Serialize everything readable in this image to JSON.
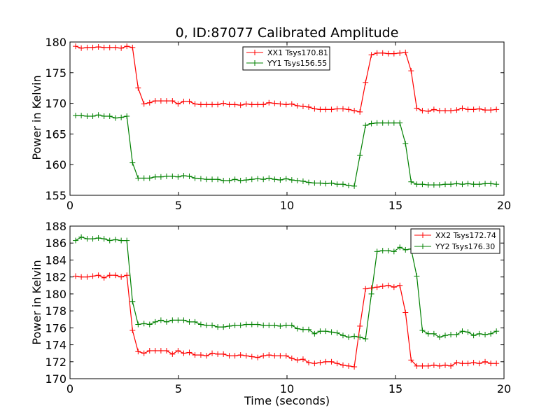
{
  "chart_data": [
    {
      "type": "line",
      "title": "0, ID:87077 Calibrated Amplitude",
      "xlabel": "",
      "ylabel": "Power in Kelvin",
      "xlim": [
        0,
        20
      ],
      "ylim": [
        155,
        180
      ],
      "xticks": [
        "0",
        "5",
        "10",
        "15",
        "20"
      ],
      "yticks": [
        "155",
        "160",
        "165",
        "170",
        "175",
        "180"
      ],
      "grid": false,
      "legend": "top-center",
      "series": [
        {
          "name": "XX1 Tsys170.81",
          "color": "#ff0000",
          "x": [
            0.26,
            0.52,
            0.79,
            1.05,
            1.31,
            1.57,
            1.83,
            2.1,
            2.36,
            2.62,
            2.88,
            3.14,
            3.41,
            3.67,
            3.93,
            4.19,
            4.45,
            4.72,
            4.98,
            5.24,
            5.5,
            5.76,
            6.03,
            6.29,
            6.55,
            6.81,
            7.07,
            7.34,
            7.6,
            7.86,
            8.12,
            8.38,
            8.65,
            8.91,
            9.17,
            9.43,
            9.69,
            9.96,
            10.22,
            10.48,
            10.74,
            11.0,
            11.27,
            11.53,
            11.79,
            12.05,
            12.31,
            12.58,
            12.84,
            13.1,
            13.36,
            13.62,
            13.89,
            14.15,
            14.41,
            14.67,
            14.93,
            15.2,
            15.46,
            15.72,
            15.98,
            16.24,
            16.51,
            16.77,
            17.03,
            17.29,
            17.55,
            17.82,
            18.08,
            18.34,
            18.6,
            18.86,
            19.13,
            19.39,
            19.65
          ],
          "y": [
            179.3,
            179.0,
            179.1,
            179.1,
            179.2,
            179.1,
            179.1,
            179.1,
            179.0,
            179.3,
            179.1,
            172.5,
            169.9,
            170.1,
            170.4,
            170.4,
            170.4,
            170.4,
            169.9,
            170.3,
            170.3,
            169.9,
            169.8,
            169.8,
            169.8,
            169.8,
            170.0,
            169.8,
            169.8,
            169.7,
            169.9,
            169.8,
            169.8,
            169.8,
            170.1,
            170.0,
            169.9,
            169.8,
            169.9,
            169.6,
            169.5,
            169.4,
            169.1,
            169.0,
            169.0,
            169.0,
            169.1,
            169.1,
            169.0,
            168.8,
            168.6,
            173.4,
            177.9,
            178.2,
            178.2,
            178.1,
            178.1,
            178.2,
            178.3,
            175.3,
            169.2,
            168.8,
            168.7,
            169.0,
            168.8,
            168.8,
            168.8,
            168.9,
            169.2,
            169.0,
            169.0,
            169.1,
            168.9,
            168.9,
            169.0
          ]
        },
        {
          "name": "YY1 Tsys156.55",
          "color": "#008000",
          "x": [
            0.26,
            0.52,
            0.79,
            1.05,
            1.31,
            1.57,
            1.83,
            2.1,
            2.36,
            2.62,
            2.88,
            3.14,
            3.41,
            3.67,
            3.93,
            4.19,
            4.45,
            4.72,
            4.98,
            5.24,
            5.5,
            5.76,
            6.03,
            6.29,
            6.55,
            6.81,
            7.07,
            7.34,
            7.6,
            7.86,
            8.12,
            8.38,
            8.65,
            8.91,
            9.17,
            9.43,
            9.69,
            9.96,
            10.22,
            10.48,
            10.74,
            11.0,
            11.27,
            11.53,
            11.79,
            12.05,
            12.31,
            12.58,
            12.84,
            13.1,
            13.36,
            13.62,
            13.89,
            14.15,
            14.41,
            14.67,
            14.93,
            15.2,
            15.46,
            15.72,
            15.98,
            16.24,
            16.51,
            16.77,
            17.03,
            17.29,
            17.55,
            17.82,
            18.08,
            18.34,
            18.6,
            18.86,
            19.13,
            19.39,
            19.65
          ],
          "y": [
            168.0,
            168.0,
            167.9,
            167.9,
            168.1,
            167.9,
            167.9,
            167.6,
            167.7,
            167.9,
            160.3,
            157.8,
            157.8,
            157.8,
            158.0,
            158.0,
            158.1,
            158.1,
            158.0,
            158.2,
            158.1,
            157.8,
            157.7,
            157.6,
            157.6,
            157.6,
            157.4,
            157.4,
            157.6,
            157.4,
            157.5,
            157.6,
            157.7,
            157.6,
            157.8,
            157.6,
            157.5,
            157.7,
            157.5,
            157.4,
            157.3,
            157.1,
            157.0,
            157.0,
            156.9,
            157.0,
            156.8,
            156.8,
            156.6,
            156.5,
            161.5,
            166.4,
            166.7,
            166.8,
            166.8,
            166.8,
            166.8,
            166.8,
            163.4,
            157.2,
            156.8,
            156.8,
            156.7,
            156.7,
            156.7,
            156.8,
            156.8,
            156.9,
            156.8,
            156.9,
            156.8,
            156.8,
            156.9,
            156.9,
            156.8
          ]
        }
      ]
    },
    {
      "type": "line",
      "title": "",
      "xlabel": "Time (seconds)",
      "ylabel": "Power in Kelvin",
      "xlim": [
        0,
        20
      ],
      "ylim": [
        170,
        188
      ],
      "xticks": [
        "0",
        "5",
        "10",
        "15",
        "20"
      ],
      "yticks": [
        "170",
        "172",
        "174",
        "176",
        "178",
        "180",
        "182",
        "184",
        "186",
        "188"
      ],
      "grid": false,
      "legend": "top-right",
      "series": [
        {
          "name": "XX2 Tsys172.74",
          "color": "#ff0000",
          "x": [
            0.26,
            0.52,
            0.79,
            1.05,
            1.31,
            1.57,
            1.83,
            2.1,
            2.36,
            2.62,
            2.88,
            3.14,
            3.41,
            3.67,
            3.93,
            4.19,
            4.45,
            4.72,
            4.98,
            5.24,
            5.5,
            5.76,
            6.03,
            6.29,
            6.55,
            6.81,
            7.07,
            7.34,
            7.6,
            7.86,
            8.12,
            8.38,
            8.65,
            8.91,
            9.17,
            9.43,
            9.69,
            9.96,
            10.22,
            10.48,
            10.74,
            11.0,
            11.27,
            11.53,
            11.79,
            12.05,
            12.31,
            12.58,
            12.84,
            13.1,
            13.36,
            13.62,
            13.89,
            14.15,
            14.41,
            14.67,
            14.93,
            15.2,
            15.46,
            15.72,
            15.98,
            16.24,
            16.51,
            16.77,
            17.03,
            17.29,
            17.55,
            17.82,
            18.08,
            18.34,
            18.6,
            18.86,
            19.13,
            19.39,
            19.65
          ],
          "y": [
            182.1,
            182.0,
            182.0,
            182.1,
            182.2,
            181.9,
            182.2,
            182.2,
            182.0,
            182.2,
            175.7,
            173.2,
            173.0,
            173.3,
            173.3,
            173.3,
            173.3,
            172.9,
            173.3,
            173.0,
            173.1,
            172.8,
            172.8,
            172.7,
            173.0,
            172.9,
            172.9,
            172.7,
            172.7,
            172.8,
            172.7,
            172.6,
            172.5,
            172.7,
            172.8,
            172.7,
            172.7,
            172.7,
            172.4,
            172.2,
            172.3,
            171.9,
            171.8,
            171.9,
            172.0,
            172.0,
            171.8,
            171.6,
            171.5,
            171.4,
            176.2,
            180.6,
            180.7,
            180.8,
            180.9,
            181.0,
            180.8,
            181.0,
            177.8,
            172.2,
            171.5,
            171.5,
            171.5,
            171.6,
            171.5,
            171.6,
            171.5,
            171.9,
            171.8,
            171.8,
            171.9,
            171.8,
            172.0,
            171.8,
            171.8
          ]
        },
        {
          "name": "YY2 Tsys176.30",
          "color": "#008000",
          "x": [
            0.26,
            0.52,
            0.79,
            1.05,
            1.31,
            1.57,
            1.83,
            2.1,
            2.36,
            2.62,
            2.88,
            3.14,
            3.41,
            3.67,
            3.93,
            4.19,
            4.45,
            4.72,
            4.98,
            5.24,
            5.5,
            5.76,
            6.03,
            6.29,
            6.55,
            6.81,
            7.07,
            7.34,
            7.6,
            7.86,
            8.12,
            8.38,
            8.65,
            8.91,
            9.17,
            9.43,
            9.69,
            9.96,
            10.22,
            10.48,
            10.74,
            11.0,
            11.27,
            11.53,
            11.79,
            12.05,
            12.31,
            12.58,
            12.84,
            13.1,
            13.36,
            13.62,
            13.89,
            14.15,
            14.41,
            14.67,
            14.93,
            15.2,
            15.46,
            15.72,
            15.98,
            16.24,
            16.51,
            16.77,
            17.03,
            17.29,
            17.55,
            17.82,
            18.08,
            18.34,
            18.6,
            18.86,
            19.13,
            19.39,
            19.65
          ],
          "y": [
            186.3,
            186.7,
            186.5,
            186.5,
            186.6,
            186.5,
            186.3,
            186.4,
            186.3,
            186.3,
            179.1,
            176.4,
            176.5,
            176.4,
            176.7,
            176.9,
            176.7,
            176.9,
            176.9,
            176.9,
            176.7,
            176.7,
            176.4,
            176.3,
            176.3,
            176.1,
            176.1,
            176.2,
            176.3,
            176.3,
            176.4,
            176.4,
            176.4,
            176.3,
            176.3,
            176.3,
            176.2,
            176.3,
            176.3,
            175.9,
            175.8,
            175.8,
            175.3,
            175.6,
            175.6,
            175.5,
            175.4,
            175.1,
            174.9,
            175.0,
            174.9,
            174.7,
            180.0,
            185.0,
            185.1,
            185.1,
            185.0,
            185.5,
            185.2,
            185.3,
            182.1,
            175.7,
            175.3,
            175.3,
            174.9,
            175.1,
            175.2,
            175.2,
            175.6,
            175.5,
            175.1,
            175.3,
            175.2,
            175.3,
            175.6
          ]
        }
      ]
    }
  ]
}
